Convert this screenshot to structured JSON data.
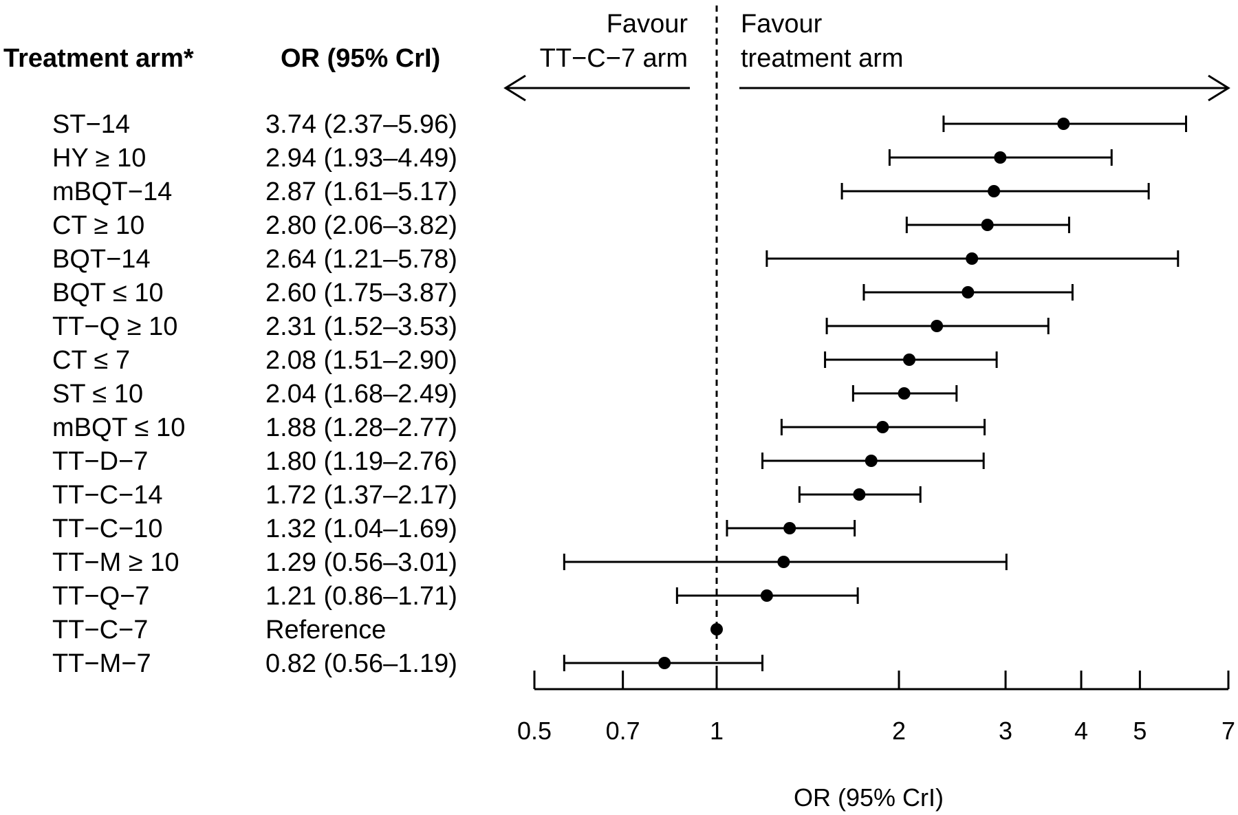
{
  "headers": {
    "arm": "Treatment arm*",
    "or": "OR (95% CrI)"
  },
  "favour_left": [
    "Favour",
    "TT−C−7 arm"
  ],
  "favour_right": [
    "Favour",
    "treatment arm"
  ],
  "chart_data": {
    "type": "forest",
    "xscale": "log",
    "xlabel": "OR (95% CrI)",
    "xlim": [
      0.5,
      7
    ],
    "ticks": [
      0.5,
      0.7,
      1,
      2,
      3,
      4,
      5,
      7
    ],
    "tick_labels": [
      "0.5",
      "0.7",
      "1",
      "2",
      "3",
      "4",
      "5",
      "7"
    ],
    "reference_line": 1,
    "rows": [
      {
        "arm": "ST−14",
        "text": "3.74 (2.37–5.96)",
        "or": 3.74,
        "lo": 2.37,
        "hi": 5.96
      },
      {
        "arm": "HY ≥ 10",
        "text": "2.94 (1.93–4.49)",
        "or": 2.94,
        "lo": 1.93,
        "hi": 4.49
      },
      {
        "arm": "mBQT−14",
        "text": "2.87 (1.61–5.17)",
        "or": 2.87,
        "lo": 1.61,
        "hi": 5.17
      },
      {
        "arm": "CT ≥ 10",
        "text": "2.80 (2.06–3.82)",
        "or": 2.8,
        "lo": 2.06,
        "hi": 3.82
      },
      {
        "arm": "BQT−14",
        "text": "2.64 (1.21–5.78)",
        "or": 2.64,
        "lo": 1.21,
        "hi": 5.78
      },
      {
        "arm": "BQT ≤ 10",
        "text": "2.60 (1.75–3.87)",
        "or": 2.6,
        "lo": 1.75,
        "hi": 3.87
      },
      {
        "arm": "TT−Q ≥ 10",
        "text": "2.31 (1.52–3.53)",
        "or": 2.31,
        "lo": 1.52,
        "hi": 3.53
      },
      {
        "arm": "CT ≤ 7",
        "text": "2.08 (1.51–2.90)",
        "or": 2.08,
        "lo": 1.51,
        "hi": 2.9
      },
      {
        "arm": "ST ≤ 10",
        "text": "2.04 (1.68–2.49)",
        "or": 2.04,
        "lo": 1.68,
        "hi": 2.49
      },
      {
        "arm": "mBQT ≤ 10",
        "text": "1.88 (1.28–2.77)",
        "or": 1.88,
        "lo": 1.28,
        "hi": 2.77
      },
      {
        "arm": "TT−D−7",
        "text": "1.80 (1.19–2.76)",
        "or": 1.8,
        "lo": 1.19,
        "hi": 2.76
      },
      {
        "arm": "TT−C−14",
        "text": "1.72 (1.37–2.17)",
        "or": 1.72,
        "lo": 1.37,
        "hi": 2.17
      },
      {
        "arm": "TT−C−10",
        "text": "1.32 (1.04–1.69)",
        "or": 1.32,
        "lo": 1.04,
        "hi": 1.69
      },
      {
        "arm": "TT−M ≥ 10",
        "text": "1.29 (0.56–3.01)",
        "or": 1.29,
        "lo": 0.56,
        "hi": 3.01
      },
      {
        "arm": "TT−Q−7",
        "text": "1.21 (0.86–1.71)",
        "or": 1.21,
        "lo": 0.86,
        "hi": 1.71
      },
      {
        "arm": "TT−C−7",
        "text": "Reference",
        "or": 1,
        "lo": null,
        "hi": null
      },
      {
        "arm": "TT−M−7",
        "text": "0.82 (0.56–1.19)",
        "or": 0.82,
        "lo": 0.56,
        "hi": 1.19
      }
    ]
  }
}
